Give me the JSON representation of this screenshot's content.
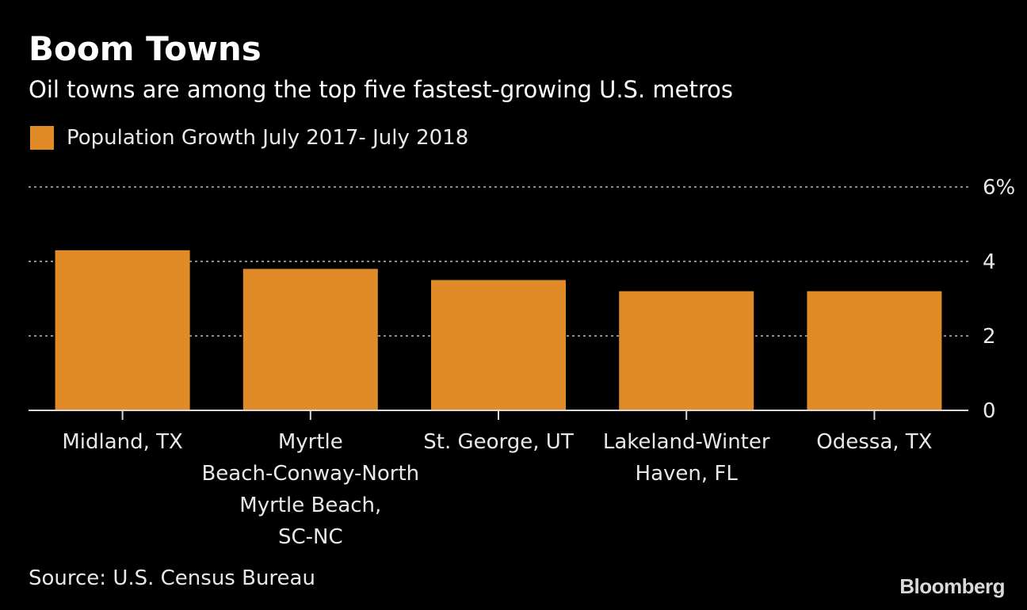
{
  "title": "Boom Towns",
  "subtitle": "Oil towns are among the top five fastest-growing U.S. metros",
  "source": "Source: U.S. Census Bureau",
  "brand": "Bloomberg",
  "colors": {
    "background": "#000000",
    "bar": "#e08b27",
    "grid": "#8c8c8c",
    "axis": "#d9d9d9",
    "text": "#e8e8e8"
  },
  "chart_data": {
    "type": "bar",
    "categories": [
      "Midland, TX",
      "Myrtle Beach-Conway-North Myrtle Beach, SC-NC",
      "St. George, UT",
      "Lakeland-Winter Haven, FL",
      "Odessa, TX"
    ],
    "category_lines": [
      [
        "Midland, TX"
      ],
      [
        "Myrtle",
        "Beach-Conway-North",
        "Myrtle Beach,",
        "SC-NC"
      ],
      [
        "St. George, UT"
      ],
      [
        "Lakeland-Winter",
        "Haven, FL"
      ],
      [
        "Odessa, TX"
      ]
    ],
    "series": [
      {
        "name": "Population Growth July 2017- July 2018",
        "values": [
          4.3,
          3.8,
          3.5,
          3.2,
          3.2
        ]
      }
    ],
    "ylim": [
      0,
      6
    ],
    "yticks": [
      0,
      2,
      4,
      6
    ],
    "ytick_labels": [
      "0",
      "2",
      "4",
      "6%"
    ],
    "y_axis_side": "right",
    "grid": true,
    "legend_position": "top-left"
  }
}
